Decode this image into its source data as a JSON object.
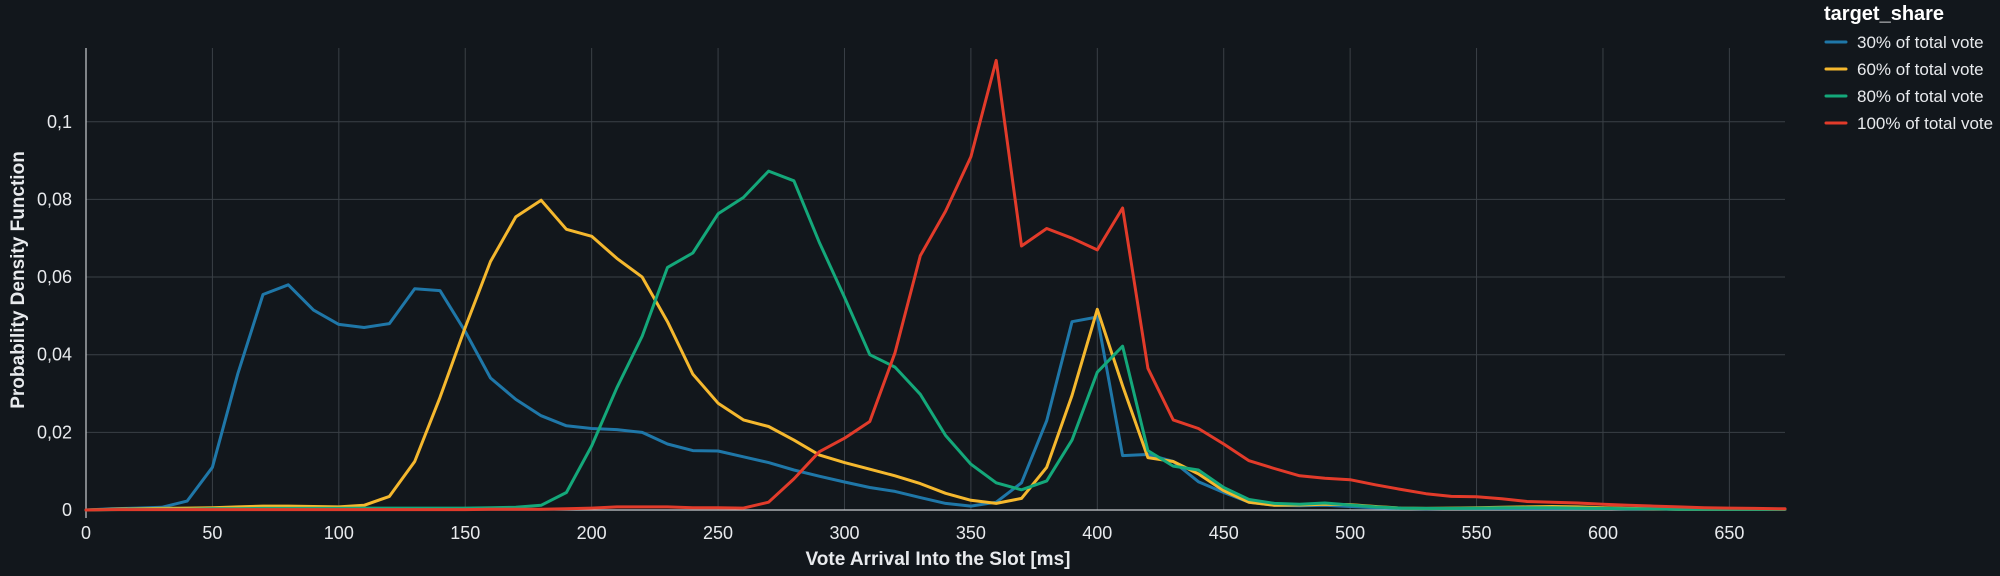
{
  "chart_data": {
    "type": "line",
    "xlabel": "Vote Arrival Into the Slot [ms]",
    "ylabel": "Probability Density Function",
    "xlim": [
      0,
      672
    ],
    "ylim": [
      0,
      0.119
    ],
    "x_ticks": [
      0,
      50,
      100,
      150,
      200,
      250,
      300,
      350,
      400,
      450,
      500,
      550,
      600,
      650
    ],
    "y_ticks": [
      0,
      0.02,
      0.04,
      0.06,
      0.08,
      0.1
    ],
    "y_tick_labels": [
      "0",
      "0,02",
      "0,04",
      "0,06",
      "0,08",
      "0,1"
    ],
    "grid": true,
    "legend": {
      "title": "target_share",
      "placement": "right"
    },
    "x": [
      0,
      10,
      20,
      30,
      40,
      50,
      60,
      70,
      80,
      90,
      100,
      110,
      120,
      130,
      140,
      150,
      160,
      170,
      180,
      190,
      200,
      210,
      220,
      230,
      240,
      250,
      260,
      270,
      280,
      290,
      300,
      310,
      320,
      330,
      340,
      350,
      360,
      370,
      380,
      390,
      400,
      410,
      420,
      430,
      440,
      450,
      460,
      470,
      480,
      490,
      500,
      510,
      520,
      530,
      540,
      550,
      560,
      570,
      580,
      590,
      600,
      610,
      620,
      630,
      640,
      650,
      660,
      672
    ],
    "series": [
      {
        "name": "30% of total vote",
        "color": "#1f77a8",
        "values": [
          0,
          0.0003,
          0.0005,
          0.0007,
          0.0023,
          0.011,
          0.035,
          0.0555,
          0.058,
          0.0515,
          0.0478,
          0.047,
          0.048,
          0.057,
          0.0565,
          0.046,
          0.034,
          0.0285,
          0.0243,
          0.0217,
          0.021,
          0.0207,
          0.02,
          0.017,
          0.0153,
          0.0152,
          0.0137,
          0.0122,
          0.0103,
          0.0087,
          0.0072,
          0.0058,
          0.0048,
          0.0032,
          0.0017,
          0.001,
          0.002,
          0.007,
          0.023,
          0.0485,
          0.0497,
          0.014,
          0.0143,
          0.0125,
          0.0073,
          0.0045,
          0.002,
          0.0012,
          0.0011,
          0.0012,
          0.0009,
          0.0006,
          0.0004,
          0.0003,
          0.0004,
          0.0004,
          0.0004,
          0.0004,
          0.0004,
          0.0004,
          0.0004,
          0.0003,
          0.0003,
          0.0002,
          0.0002,
          0.0002,
          0.0002,
          0.0002
        ]
      },
      {
        "name": "60% of total vote",
        "color": "#f5b82e",
        "values": [
          0,
          0.0002,
          0.0003,
          0.0004,
          0.0005,
          0.0006,
          0.0008,
          0.001,
          0.001,
          0.0009,
          0.0008,
          0.0012,
          0.0035,
          0.0125,
          0.029,
          0.047,
          0.064,
          0.0755,
          0.0798,
          0.0723,
          0.0705,
          0.0648,
          0.06,
          0.0485,
          0.035,
          0.0275,
          0.0232,
          0.0215,
          0.018,
          0.0142,
          0.0122,
          0.0105,
          0.0088,
          0.0068,
          0.0043,
          0.0025,
          0.0017,
          0.003,
          0.011,
          0.0295,
          0.0517,
          0.032,
          0.0135,
          0.0125,
          0.0093,
          0.005,
          0.002,
          0.0012,
          0.0013,
          0.0015,
          0.0014,
          0.0009,
          0.0005,
          0.0004,
          0.0005,
          0.0006,
          0.0007,
          0.0008,
          0.0009,
          0.0008,
          0.0006,
          0.0004,
          0.0003,
          0.0002,
          0.0002,
          0.0002,
          0.0002,
          0.0002
        ]
      },
      {
        "name": "80% of total vote",
        "color": "#14a87a",
        "values": [
          0,
          0.0001,
          0.0002,
          0.0002,
          0.0002,
          0.0003,
          0.0003,
          0.0004,
          0.0004,
          0.0004,
          0.0004,
          0.0005,
          0.0005,
          0.0005,
          0.0005,
          0.0005,
          0.0006,
          0.0007,
          0.0012,
          0.0045,
          0.0165,
          0.0315,
          0.0448,
          0.0625,
          0.0662,
          0.0763,
          0.0805,
          0.0873,
          0.0848,
          0.069,
          0.0548,
          0.04,
          0.0368,
          0.0298,
          0.0192,
          0.0118,
          0.007,
          0.0052,
          0.0075,
          0.018,
          0.0355,
          0.0422,
          0.0153,
          0.0113,
          0.0103,
          0.0058,
          0.0027,
          0.0017,
          0.0015,
          0.0018,
          0.0013,
          0.0008,
          0.0005,
          0.0004,
          0.0004,
          0.0005,
          0.0006,
          0.0006,
          0.0006,
          0.0005,
          0.0004,
          0.0003,
          0.0003,
          0.0002,
          0.0002,
          0.0002,
          0.0002,
          0.0002
        ]
      },
      {
        "name": "100% of total vote",
        "color": "#e23b2a",
        "values": [
          0,
          0.0001,
          0.0001,
          0.0001,
          0.0001,
          0.0001,
          0.0001,
          0.0001,
          0.0001,
          0.0001,
          0.0001,
          0.0001,
          0.0001,
          0.0001,
          0.0001,
          0.0001,
          0.0002,
          0.0002,
          0.0002,
          0.0003,
          0.0005,
          0.0008,
          0.0008,
          0.0008,
          0.0006,
          0.0006,
          0.0005,
          0.002,
          0.008,
          0.015,
          0.0185,
          0.0228,
          0.0405,
          0.0655,
          0.077,
          0.091,
          0.1158,
          0.068,
          0.0725,
          0.07,
          0.067,
          0.0778,
          0.0365,
          0.0232,
          0.021,
          0.017,
          0.0127,
          0.0107,
          0.0088,
          0.0082,
          0.0078,
          0.0065,
          0.0053,
          0.0042,
          0.0035,
          0.0034,
          0.0029,
          0.0022,
          0.002,
          0.0018,
          0.0015,
          0.0012,
          0.001,
          0.0008,
          0.0006,
          0.0005,
          0.0004,
          0.0003
        ]
      }
    ]
  }
}
